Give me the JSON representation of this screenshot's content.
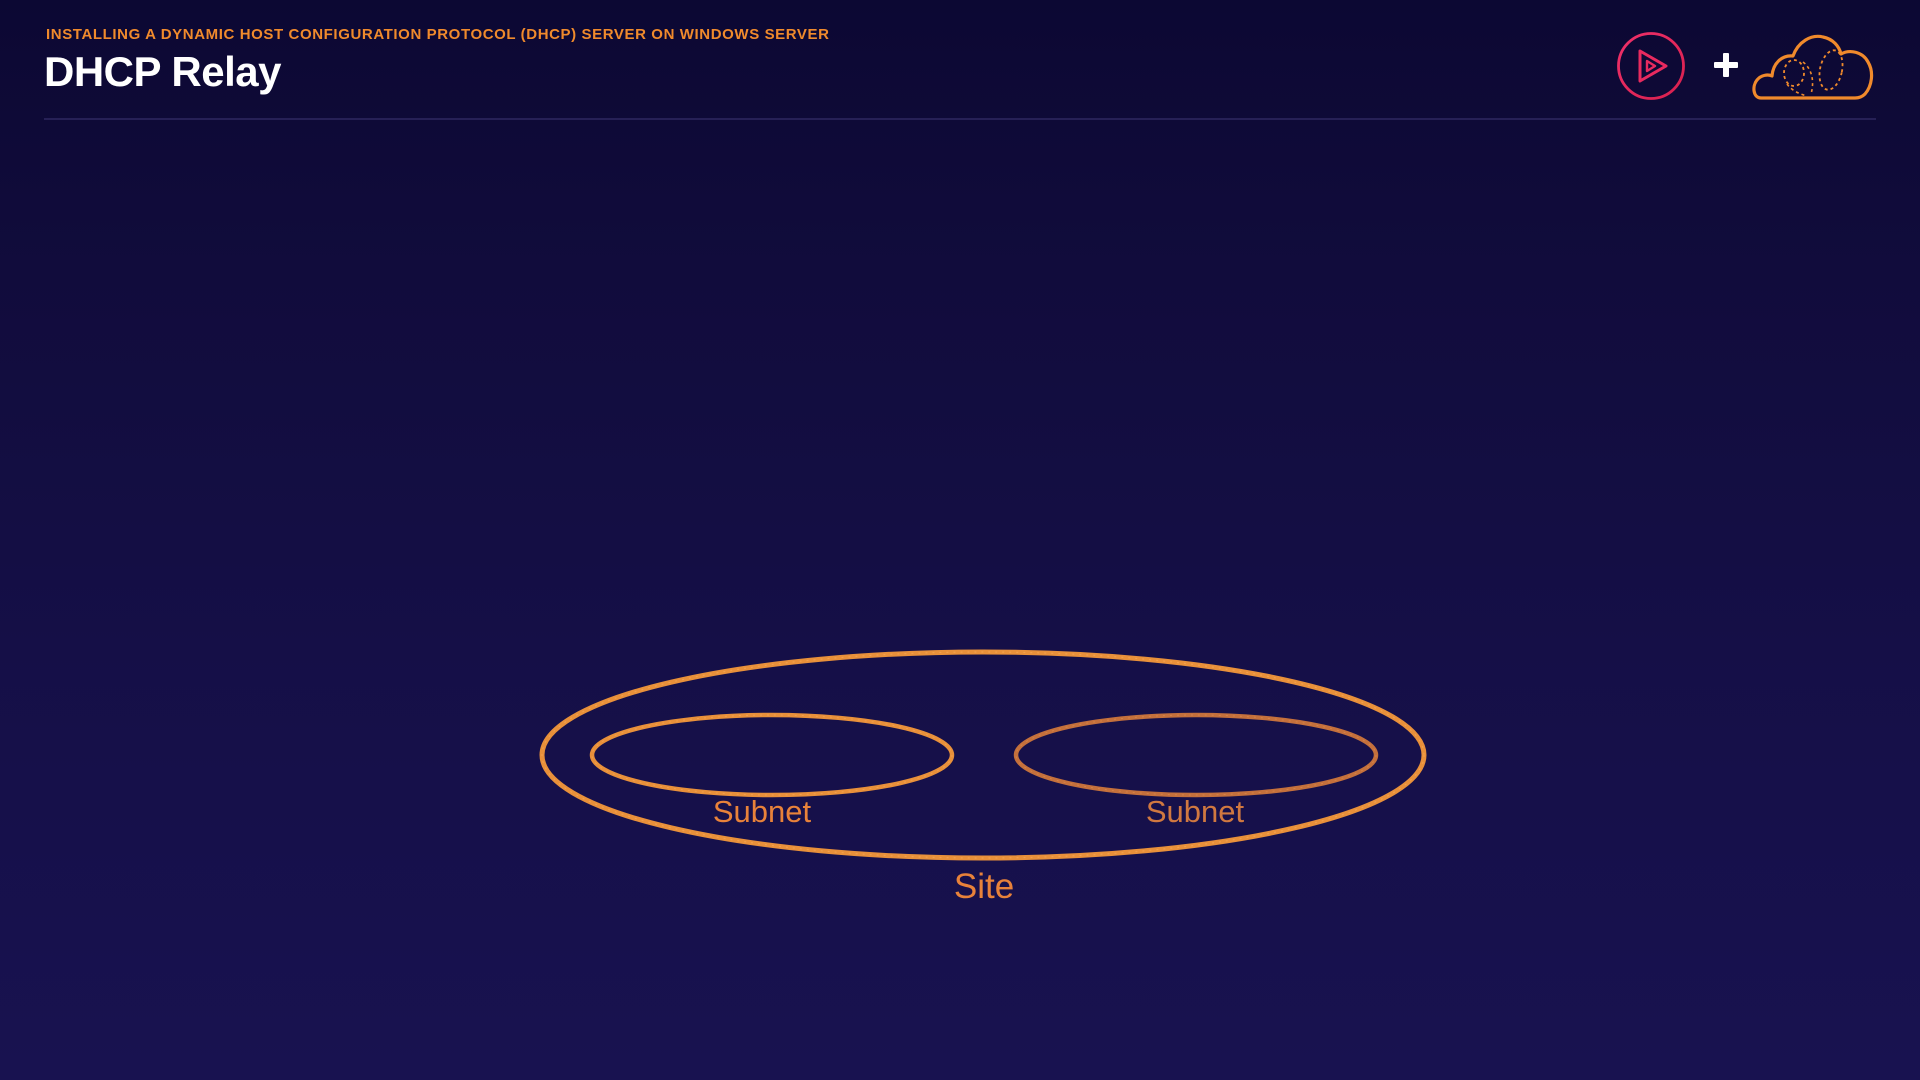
{
  "header": {
    "course_title": "INSTALLING A DYNAMIC HOST CONFIGURATION PROTOCOL (DHCP) SERVER ON WINDOWS SERVER",
    "slide_title": "DHCP Relay",
    "plus_symbol": "+"
  },
  "logos": {
    "left_logo_icon": "pluralsight-play-icon",
    "right_logo_icon": "cloud-guru-cloud-icon"
  },
  "diagram": {
    "site_label": "Site",
    "subnets": [
      {
        "label": "Subnet"
      },
      {
        "label": "Subnet"
      }
    ]
  },
  "colors": {
    "background_top": "#0c0833",
    "background_bottom": "#181250",
    "accent_orange": "#f08a2c",
    "diagram_orange": "#e8823a",
    "play_logo_red": "#e0245e",
    "title_white": "#ffffff"
  }
}
